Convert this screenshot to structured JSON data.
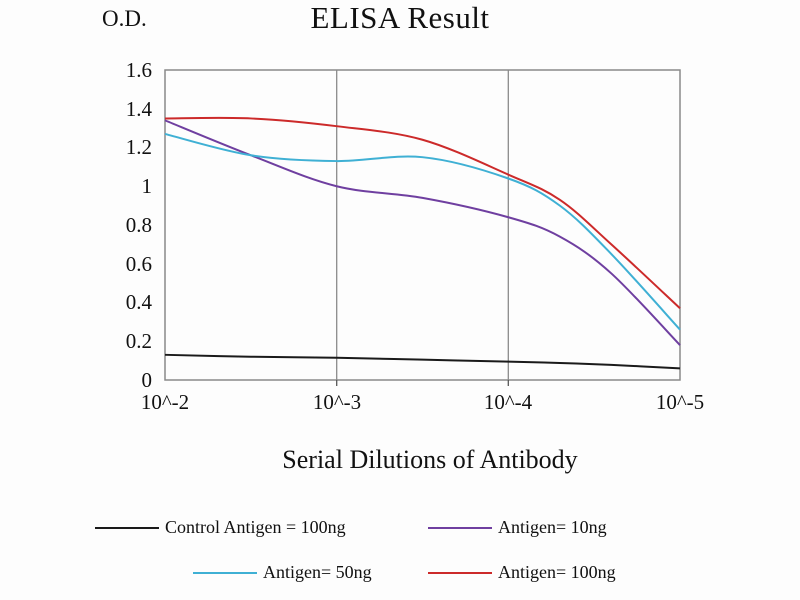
{
  "title": "ELISA Result",
  "od_label": "O.D.",
  "x_axis_label": "Serial Dilutions of Antibody",
  "chart_data": {
    "type": "line",
    "title": "ELISA Result",
    "xlabel": "Serial Dilutions of Antibody",
    "ylabel": "O.D.",
    "x_tick_labels": [
      "10^-2",
      "10^-3",
      "10^-4",
      "10^-5"
    ],
    "y_tick_labels": [
      "1.6",
      "1.4",
      "1.2",
      "1",
      "0.8",
      "0.6",
      "0.4",
      "0.2",
      "0"
    ],
    "ylim": [
      0,
      1.6
    ],
    "grid": "vertical-gridlines-with-border",
    "legend_position": "bottom",
    "x": [
      0,
      0.5,
      1,
      1.5,
      2,
      2.3,
      2.6,
      3
    ],
    "series": [
      {
        "name": "Control Antigen = 100ng",
        "color": "#1a1a1a",
        "values": [
          0.13,
          0.12,
          0.115,
          0.105,
          0.095,
          0.088,
          0.078,
          0.06
        ]
      },
      {
        "name": "Antigen= 10ng",
        "color": "#6f3fa0",
        "values": [
          1.34,
          1.16,
          1.0,
          0.94,
          0.84,
          0.74,
          0.55,
          0.18
        ]
      },
      {
        "name": "Antigen= 50ng",
        "color": "#3fb0d4",
        "values": [
          1.27,
          1.16,
          1.13,
          1.15,
          1.04,
          0.9,
          0.65,
          0.26
        ]
      },
      {
        "name": "Antigen= 100ng",
        "color": "#cc2a2a",
        "values": [
          1.35,
          1.35,
          1.31,
          1.24,
          1.06,
          0.93,
          0.7,
          0.37
        ]
      }
    ]
  },
  "legend": {
    "items": [
      {
        "label": "Control Antigen = 100ng",
        "color": "#1a1a1a"
      },
      {
        "label": "Antigen= 10ng",
        "color": "#6f3fa0"
      },
      {
        "label": "Antigen= 50ng",
        "color": "#3fb0d4"
      },
      {
        "label": "Antigen= 100ng",
        "color": "#cc2a2a"
      }
    ]
  }
}
